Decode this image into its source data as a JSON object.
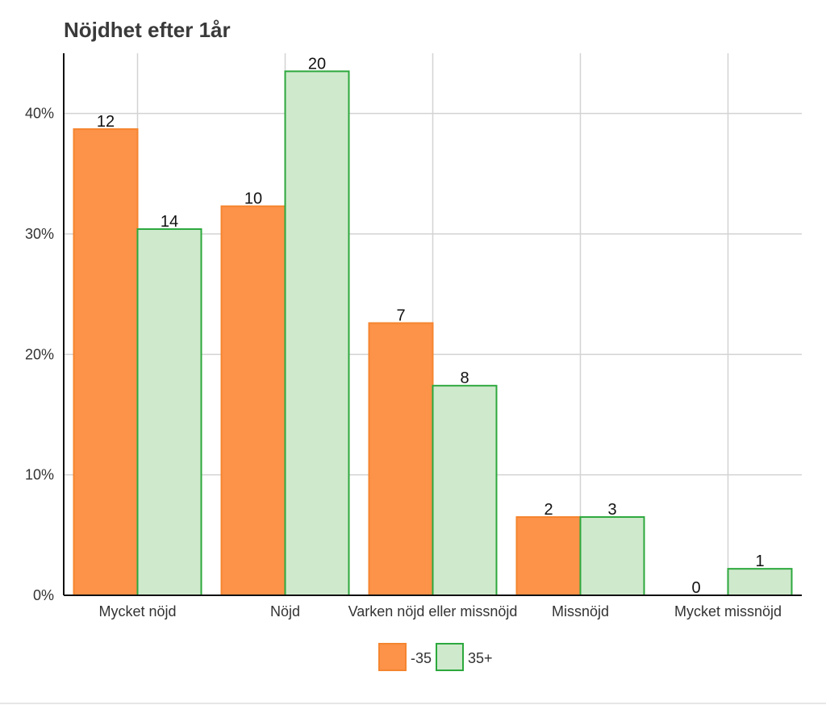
{
  "chart_data": {
    "type": "bar",
    "title": "Nöjdhet efter 1år",
    "xlabel": "",
    "ylabel": "",
    "categories": [
      "Mycket nöjd",
      "Nöjd",
      "Varken nöjd eller missnöjd",
      "Missnöjd",
      "Mycket missnöjd"
    ],
    "series": [
      {
        "name": "-35",
        "values": [
          38.7,
          32.3,
          22.6,
          6.5,
          0
        ],
        "labels": [
          "12",
          "10",
          "7",
          "2",
          "0"
        ],
        "color": "#fd9249",
        "stroke": "#f5852f"
      },
      {
        "name": "35+",
        "values": [
          30.4,
          43.5,
          17.4,
          6.5,
          2.2
        ],
        "labels": [
          "14",
          "20",
          "8",
          "3",
          "1"
        ],
        "color": "#cfe9cc",
        "stroke": "#2ca83d"
      }
    ],
    "ylim": [
      0,
      45
    ],
    "yticks": [
      "0%",
      "10%",
      "20%",
      "30%",
      "40%"
    ],
    "ytick_values": [
      0,
      10,
      20,
      30,
      40
    ],
    "grid": true,
    "legend_position": "bottom"
  }
}
